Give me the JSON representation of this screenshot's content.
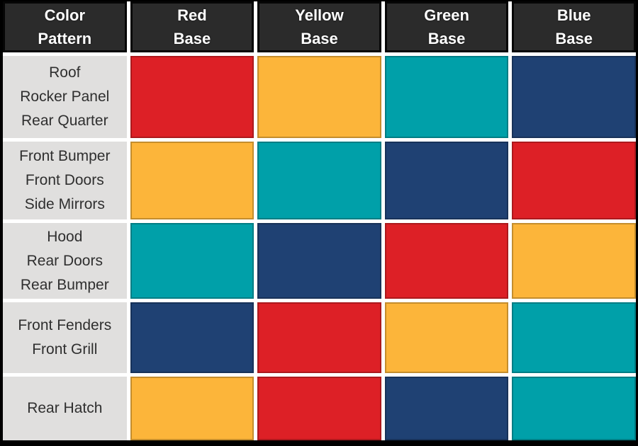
{
  "colors": {
    "red": "#dd2026",
    "yellow": "#fcb53a",
    "teal": "#00a0a9",
    "blue": "#1f4173"
  },
  "table": {
    "columns": [
      {
        "line1": "Color",
        "line2": "Pattern"
      },
      {
        "line1": "Red",
        "line2": "Base"
      },
      {
        "line1": "Yellow",
        "line2": "Base"
      },
      {
        "line1": "Green",
        "line2": "Base"
      },
      {
        "line1": "Blue",
        "line2": "Base"
      }
    ],
    "rows": [
      {
        "label_lines": [
          "Roof",
          "Rocker Panel",
          "Rear Quarter"
        ],
        "cells": [
          "red",
          "yellow",
          "teal",
          "blue"
        ]
      },
      {
        "label_lines": [
          "Front Bumper",
          "Front Doors",
          "Side Mirrors"
        ],
        "cells": [
          "yellow",
          "teal",
          "blue",
          "red"
        ]
      },
      {
        "label_lines": [
          "Hood",
          "Rear Doors",
          "Rear Bumper"
        ],
        "cells": [
          "teal",
          "blue",
          "red",
          "yellow"
        ]
      },
      {
        "label_lines": [
          "Front Fenders",
          "Front Grill"
        ],
        "cells": [
          "blue",
          "red",
          "yellow",
          "teal"
        ]
      },
      {
        "label_lines": [
          "Rear Hatch"
        ],
        "cells": [
          "yellow",
          "red",
          "blue",
          "teal"
        ]
      }
    ]
  },
  "chart_data": {
    "type": "table",
    "title": "Color Pattern matrix by paint base",
    "columns": [
      "Color Pattern",
      "Red Base",
      "Yellow Base",
      "Green Base",
      "Blue Base"
    ],
    "rows": [
      {
        "pattern": "Roof / Rocker Panel / Rear Quarter",
        "red_base": "red",
        "yellow_base": "yellow",
        "green_base": "teal",
        "blue_base": "blue"
      },
      {
        "pattern": "Front Bumper / Front Doors / Side Mirrors",
        "red_base": "yellow",
        "yellow_base": "teal",
        "green_base": "blue",
        "blue_base": "red"
      },
      {
        "pattern": "Hood / Rear Doors / Rear Bumper",
        "red_base": "teal",
        "yellow_base": "blue",
        "green_base": "red",
        "blue_base": "yellow"
      },
      {
        "pattern": "Front Fenders / Front Grill",
        "red_base": "blue",
        "yellow_base": "red",
        "green_base": "yellow",
        "blue_base": "teal"
      },
      {
        "pattern": "Rear Hatch",
        "red_base": "yellow",
        "yellow_base": "red",
        "green_base": "blue",
        "blue_base": "teal"
      }
    ],
    "swatch_hex": {
      "red": "#dd2026",
      "yellow": "#fcb53a",
      "teal": "#00a0a9",
      "blue": "#1f4173"
    }
  }
}
